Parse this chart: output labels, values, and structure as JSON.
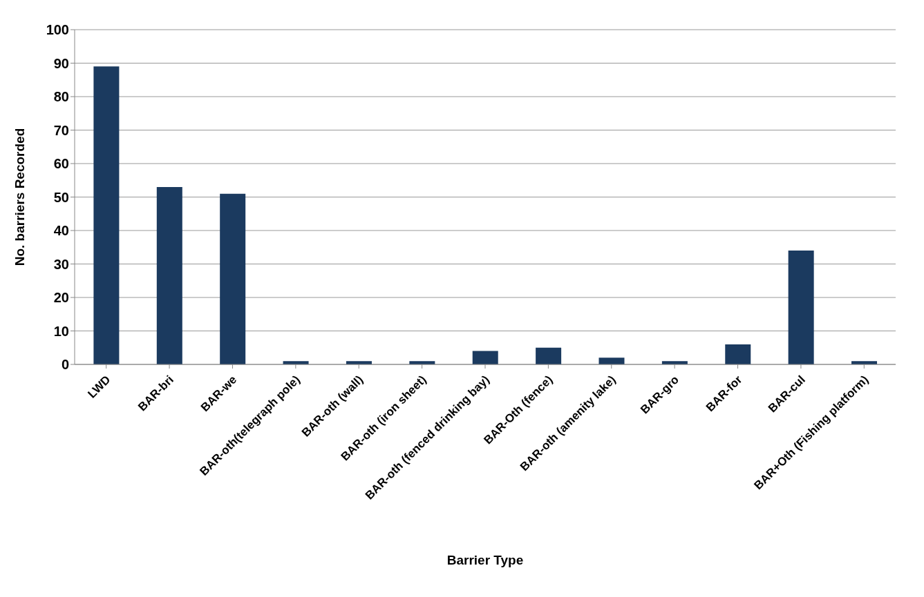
{
  "chart_data": {
    "type": "bar",
    "xlabel": "Barrier Type",
    "ylabel": "No. barriers Recorded",
    "categories": [
      "LWD",
      "BAR-bri",
      "BAR-we",
      "BAR-oth(telegraph pole)",
      "BAR-oth (wall)",
      "BAR-oth (iron sheet)",
      "BAR-oth (fenced drinking bay)",
      "BAR-Oth (fence)",
      "BAR-oth (amenity lake)",
      "BAR-gro",
      "BAR-for",
      "BAR-cul",
      "BAR+Oth (Fishing platform)"
    ],
    "values": [
      89,
      53,
      51,
      1,
      1,
      1,
      4,
      5,
      2,
      1,
      6,
      34,
      1
    ],
    "color": "#1b3a5f",
    "ylim": [
      0,
      100
    ],
    "yticks": [
      0,
      10,
      20,
      30,
      40,
      50,
      60,
      70,
      80,
      90,
      100
    ],
    "grid": "y"
  }
}
